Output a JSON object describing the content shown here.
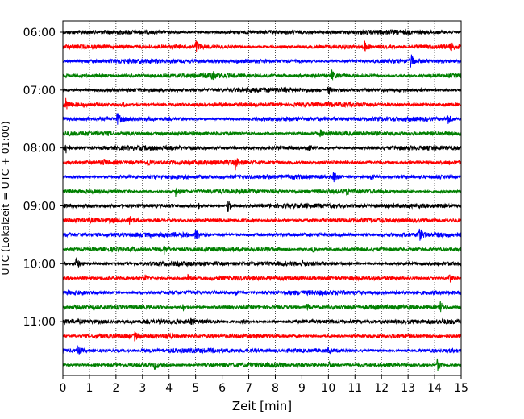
{
  "chart_data": {
    "type": "line",
    "title": "",
    "xlabel": "Zeit  [min]",
    "ylabel": "UTC (Lokalzeit = UTC + 01:00)",
    "xlim": [
      0,
      15
    ],
    "x_ticks": [
      "0",
      "1",
      "2",
      "3",
      "4",
      "5",
      "6",
      "7",
      "8",
      "9",
      "10",
      "11",
      "12",
      "13",
      "14",
      "15"
    ],
    "y_ticks": [
      "06:00",
      "07:00",
      "08:00",
      "09:00",
      "10:00",
      "11:00"
    ],
    "grid": "vertical-dotted",
    "trace_colors": [
      "#000000",
      "#ff0000",
      "#0000ff",
      "#008000"
    ],
    "traces": [
      {
        "start": "06:00",
        "color": "#000000",
        "events": []
      },
      {
        "start": "06:15",
        "color": "#ff0000",
        "events": [
          [
            5.0,
            1.0
          ],
          [
            11.35,
            0.8
          ],
          [
            14.6,
            0.5
          ]
        ]
      },
      {
        "start": "06:30",
        "color": "#0000ff",
        "events": [
          [
            13.1,
            1.0
          ]
        ]
      },
      {
        "start": "06:45",
        "color": "#008000",
        "events": [
          [
            5.6,
            0.7
          ],
          [
            10.1,
            0.9
          ]
        ]
      },
      {
        "start": "07:00",
        "color": "#000000",
        "events": [
          [
            10.0,
            0.5
          ]
        ]
      },
      {
        "start": "07:15",
        "color": "#ff0000",
        "events": [
          [
            0.1,
            0.8
          ],
          [
            2.3,
            0.3
          ]
        ]
      },
      {
        "start": "07:30",
        "color": "#0000ff",
        "events": [
          [
            2.05,
            0.9
          ],
          [
            14.5,
            0.7
          ]
        ]
      },
      {
        "start": "07:45",
        "color": "#008000",
        "events": [
          [
            9.7,
            0.4
          ]
        ]
      },
      {
        "start": "08:00",
        "color": "#000000",
        "events": [
          [
            0.1,
            0.8
          ],
          [
            9.2,
            0.6
          ]
        ]
      },
      {
        "start": "08:15",
        "color": "#ff0000",
        "events": [
          [
            1.5,
            0.5
          ],
          [
            3.2,
            0.5
          ],
          [
            6.5,
            0.8
          ]
        ]
      },
      {
        "start": "08:30",
        "color": "#0000ff",
        "events": [
          [
            10.2,
            0.9
          ],
          [
            11.6,
            0.4
          ]
        ]
      },
      {
        "start": "08:45",
        "color": "#008000",
        "events": [
          [
            4.25,
            0.8
          ],
          [
            10.7,
            0.4
          ]
        ]
      },
      {
        "start": "09:00",
        "color": "#000000",
        "events": [
          [
            5.1,
            0.3
          ],
          [
            6.2,
            1.0
          ]
        ]
      },
      {
        "start": "09:15",
        "color": "#ff0000",
        "events": [
          [
            2.5,
            0.6
          ]
        ]
      },
      {
        "start": "09:30",
        "color": "#0000ff",
        "events": [
          [
            5.0,
            0.8
          ],
          [
            13.4,
            0.9
          ]
        ]
      },
      {
        "start": "09:45",
        "color": "#008000",
        "events": [
          [
            3.8,
            0.7
          ],
          [
            9.4,
            0.4
          ]
        ]
      },
      {
        "start": "10:00",
        "color": "#000000",
        "events": [
          [
            0.5,
            0.9
          ],
          [
            9.0,
            0.3
          ]
        ]
      },
      {
        "start": "10:15",
        "color": "#ff0000",
        "events": [
          [
            3.1,
            0.4
          ],
          [
            4.7,
            0.5
          ],
          [
            14.55,
            0.9
          ]
        ]
      },
      {
        "start": "10:30",
        "color": "#0000ff",
        "events": [
          [
            6.5,
            0.3
          ]
        ]
      },
      {
        "start": "10:45",
        "color": "#008000",
        "events": [
          [
            4.5,
            0.6
          ],
          [
            9.2,
            0.4
          ],
          [
            14.2,
            0.9
          ]
        ]
      },
      {
        "start": "11:00",
        "color": "#000000",
        "events": [
          [
            4.8,
            0.4
          ],
          [
            6.8,
            0.4
          ]
        ]
      },
      {
        "start": "11:15",
        "color": "#ff0000",
        "events": [
          [
            2.7,
            0.5
          ],
          [
            3.9,
            0.5
          ]
        ]
      },
      {
        "start": "11:30",
        "color": "#0000ff",
        "events": [
          [
            0.55,
            0.7
          ],
          [
            10.0,
            0.3
          ]
        ]
      },
      {
        "start": "11:45",
        "color": "#008000",
        "events": [
          [
            3.45,
            0.6
          ],
          [
            10.0,
            0.5
          ],
          [
            14.1,
            0.9
          ]
        ]
      }
    ]
  }
}
